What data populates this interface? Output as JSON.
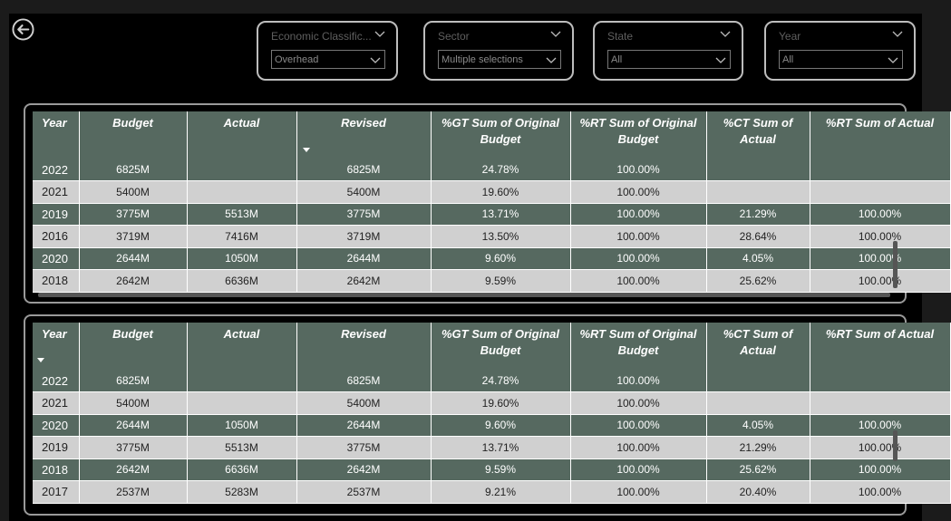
{
  "slicers": [
    {
      "title": "Economic Classific...",
      "value": "Overhead"
    },
    {
      "title": "Sector",
      "value": "Multiple selections"
    },
    {
      "title": "State",
      "value": "All"
    },
    {
      "title": "Year",
      "value": "All"
    }
  ],
  "tables": [
    {
      "columns": [
        "Year",
        "Budget",
        "Actual",
        "Revised",
        "%GT Sum of Original Budget",
        "%RT Sum of Original Budget",
        "%CT Sum of Actual",
        "%RT Sum of Actual"
      ],
      "sort_column": "Revised",
      "rows": [
        [
          "2022",
          "6825M",
          "",
          "6825M",
          "24.78%",
          "100.00%",
          "",
          ""
        ],
        [
          "2021",
          "5400M",
          "",
          "5400M",
          "19.60%",
          "100.00%",
          "",
          ""
        ],
        [
          "2019",
          "3775M",
          "5513M",
          "3775M",
          "13.71%",
          "100.00%",
          "21.29%",
          "100.00%"
        ],
        [
          "2016",
          "3719M",
          "7416M",
          "3719M",
          "13.50%",
          "100.00%",
          "28.64%",
          "100.00%"
        ],
        [
          "2020",
          "2644M",
          "1050M",
          "2644M",
          "9.60%",
          "100.00%",
          "4.05%",
          "100.00%"
        ],
        [
          "2018",
          "2642M",
          "6636M",
          "2642M",
          "9.59%",
          "100.00%",
          "25.62%",
          "100.00%"
        ]
      ]
    },
    {
      "columns": [
        "Year",
        "Budget",
        "Actual",
        "Revised",
        "%GT Sum of Original Budget",
        "%RT Sum of Original Budget",
        "%CT Sum of Actual",
        "%RT Sum of Actual"
      ],
      "sort_column": "Year",
      "rows": [
        [
          "2022",
          "6825M",
          "",
          "6825M",
          "24.78%",
          "100.00%",
          "",
          ""
        ],
        [
          "2021",
          "5400M",
          "",
          "5400M",
          "19.60%",
          "100.00%",
          "",
          ""
        ],
        [
          "2020",
          "2644M",
          "1050M",
          "2644M",
          "9.60%",
          "100.00%",
          "4.05%",
          "100.00%"
        ],
        [
          "2019",
          "3775M",
          "5513M",
          "3775M",
          "13.71%",
          "100.00%",
          "21.29%",
          "100.00%"
        ],
        [
          "2018",
          "2642M",
          "6636M",
          "2642M",
          "9.59%",
          "100.00%",
          "25.62%",
          "100.00%"
        ],
        [
          "2017",
          "2537M",
          "5283M",
          "2537M",
          "9.21%",
          "100.00%",
          "20.40%",
          "100.00%"
        ]
      ]
    }
  ],
  "colors": {
    "header_bg": "#566960",
    "row_dark": "#566960",
    "row_light": "#d0d0d0",
    "background": "#000000"
  },
  "icons": {
    "back": "back-arrow-circle-icon",
    "chevron": "chevron-down-icon"
  }
}
